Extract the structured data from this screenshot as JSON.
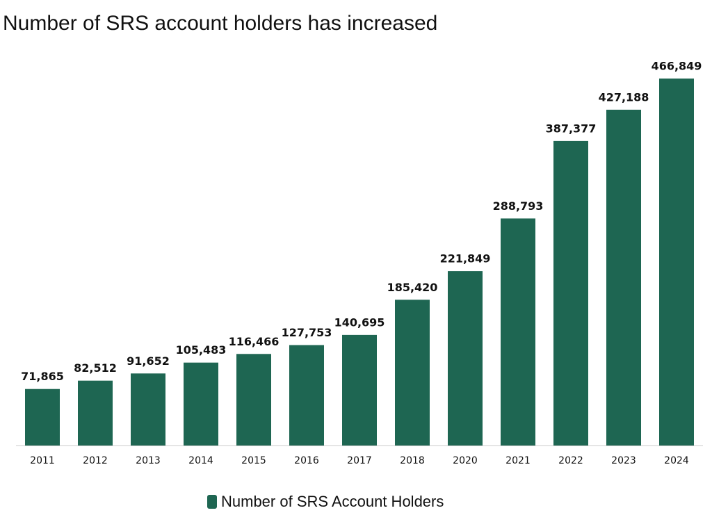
{
  "chart_data": {
    "type": "bar",
    "title": "Number of SRS account holders has increased",
    "categories": [
      "2011",
      "2012",
      "2013",
      "2014",
      "2015",
      "2016",
      "2017",
      "2018",
      "2020",
      "2021",
      "2022",
      "2023",
      "2024"
    ],
    "series": [
      {
        "name": "Number of SRS Account Holders",
        "color": "#1e6652",
        "values": [
          71865,
          82512,
          91652,
          105483,
          116466,
          127753,
          140695,
          185420,
          221849,
          288793,
          387377,
          427188,
          466849
        ],
        "value_labels": [
          "71,865",
          "82,512",
          "91,652",
          "105,483",
          "116,466",
          "127,753",
          "140,695",
          "185,420",
          "221,849",
          "288,793",
          "387,377",
          "427,188",
          "466,849"
        ]
      }
    ],
    "legend": "bottom"
  }
}
